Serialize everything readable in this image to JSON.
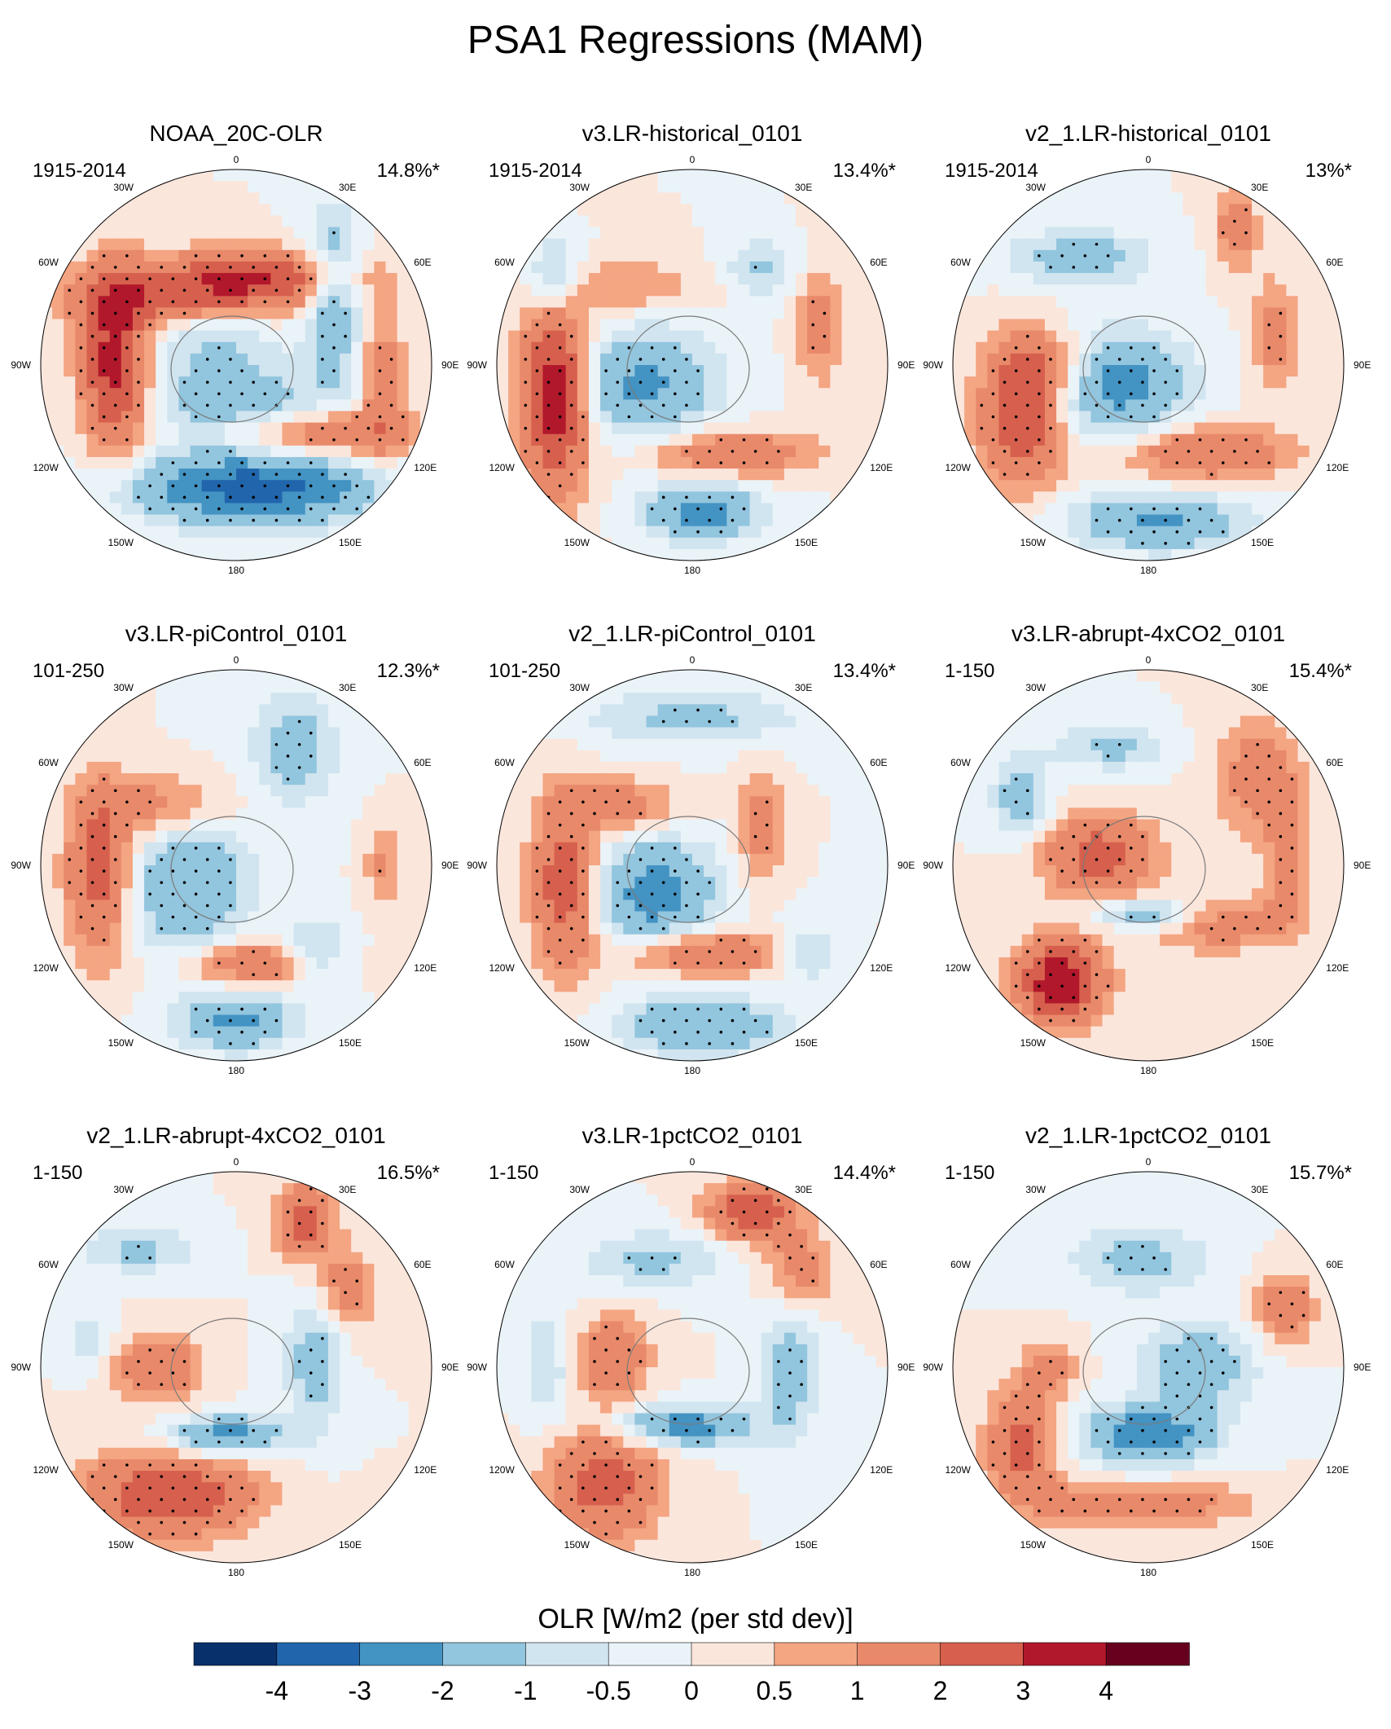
{
  "title": "PSA1 Regressions (MAM)",
  "colorbar": {
    "title": "OLR [W/m2 (per std dev)]",
    "tick_labels": [
      "-4",
      "-3",
      "-2",
      "-1",
      "-0.5",
      "0",
      "0.5",
      "1",
      "2",
      "3",
      "4"
    ],
    "colors": [
      "#08306b",
      "#2166ac",
      "#4393c3",
      "#92c5de",
      "#d1e5f0",
      "#eaf3f8",
      "#fbe6dc",
      "#f4a582",
      "#e8896a",
      "#d6604d",
      "#b2182b",
      "#67001f"
    ]
  },
  "chart_data": {
    "type": "heatmap",
    "projection": "south polar stereographic",
    "variable": "OLR regression on PSA1",
    "season": "MAM",
    "longitude_labels": [
      "0",
      "30E",
      "60E",
      "90E",
      "120E",
      "150E",
      "180",
      "150W",
      "120W",
      "90W",
      "60W",
      "30W"
    ],
    "panels": [
      {
        "title": "NOAA_20C-OLR",
        "years": "1915-2014",
        "variance": "14.8%*",
        "blobs": [
          [
            -0.62,
            0.0,
            0.12,
            0.32,
            3.5
          ],
          [
            -0.3,
            -0.35,
            0.42,
            0.11,
            2.0
          ],
          [
            0.1,
            -0.45,
            0.35,
            0.1,
            2.5
          ],
          [
            0.05,
            0.2,
            0.35,
            0.1,
            -1.5
          ],
          [
            0.5,
            -0.35,
            0.1,
            0.3,
            -2.0
          ],
          [
            0.1,
            0.62,
            0.45,
            0.13,
            -3.5
          ],
          [
            -0.1,
            -0.1,
            0.25,
            0.18,
            -1.2
          ],
          [
            0.75,
            0.1,
            0.08,
            0.3,
            1.5
          ],
          [
            0.45,
            0.35,
            0.3,
            0.1,
            2.0
          ]
        ]
      },
      {
        "title": "v3.LR-historical_0101",
        "years": "1915-2014",
        "variance": "13.4%*",
        "blobs": [
          [
            -0.7,
            0.15,
            0.12,
            0.35,
            3.8
          ],
          [
            -0.25,
            0.1,
            0.25,
            0.2,
            -2.2
          ],
          [
            0.2,
            0.45,
            0.3,
            0.08,
            2.0
          ],
          [
            0.05,
            0.75,
            0.2,
            0.1,
            -2.5
          ],
          [
            0.65,
            -0.2,
            0.08,
            0.2,
            1.5
          ],
          [
            -0.7,
            -0.45,
            0.1,
            0.15,
            -1.8
          ],
          [
            0.35,
            -0.5,
            0.12,
            0.1,
            -1.2
          ],
          [
            -0.3,
            -0.4,
            0.25,
            0.1,
            1.0
          ]
        ]
      },
      {
        "title": "v2_1.LR-historical_0101",
        "years": "1915-2014",
        "variance": "13%*",
        "blobs": [
          [
            -0.65,
            0.25,
            0.15,
            0.25,
            3.0
          ],
          [
            -0.15,
            0.1,
            0.25,
            0.18,
            -2.5
          ],
          [
            0.3,
            0.45,
            0.3,
            0.1,
            2.0
          ],
          [
            0.05,
            0.8,
            0.3,
            0.1,
            -2.2
          ],
          [
            0.65,
            -0.15,
            0.08,
            0.2,
            1.5
          ],
          [
            -0.35,
            -0.55,
            0.25,
            0.1,
            -1.5
          ],
          [
            0.45,
            -0.7,
            0.08,
            0.15,
            1.5
          ],
          [
            -0.5,
            0.0,
            0.15,
            0.12,
            1.5
          ]
        ]
      },
      {
        "title": "v3.LR-piControl_0101",
        "years": "101-250",
        "variance": "12.3%*",
        "blobs": [
          [
            -0.7,
            0.05,
            0.12,
            0.3,
            2.5
          ],
          [
            -0.4,
            -0.3,
            0.25,
            0.12,
            1.5
          ],
          [
            -0.25,
            0.1,
            0.22,
            0.25,
            -2.0
          ],
          [
            0.1,
            0.5,
            0.25,
            0.08,
            2.0
          ],
          [
            0.0,
            0.8,
            0.2,
            0.1,
            -2.2
          ],
          [
            0.4,
            0.45,
            0.12,
            0.12,
            -1.5
          ],
          [
            0.3,
            -0.6,
            0.15,
            0.2,
            -1.5
          ],
          [
            0.75,
            0.0,
            0.06,
            0.15,
            1.2
          ]
        ]
      },
      {
        "title": "v2_1.LR-piControl_0101",
        "years": "101-250",
        "variance": "13.4%*",
        "blobs": [
          [
            -0.65,
            0.1,
            0.12,
            0.3,
            2.8
          ],
          [
            -0.2,
            0.15,
            0.22,
            0.2,
            -2.5
          ],
          [
            0.05,
            0.45,
            0.3,
            0.08,
            2.2
          ],
          [
            0.05,
            0.82,
            0.3,
            0.1,
            -2.0
          ],
          [
            -0.35,
            -0.3,
            0.2,
            0.1,
            1.5
          ],
          [
            0.35,
            -0.2,
            0.08,
            0.2,
            1.5
          ],
          [
            0.0,
            -0.75,
            0.4,
            0.1,
            -1.2
          ],
          [
            0.6,
            0.45,
            0.12,
            0.1,
            -1.2
          ]
        ]
      },
      {
        "title": "v3.LR-abrupt-4xCO2_0101",
        "years": "1-150",
        "variance": "15.4%*",
        "blobs": [
          [
            -0.45,
            0.6,
            0.15,
            0.15,
            4.0
          ],
          [
            -0.25,
            -0.05,
            0.2,
            0.15,
            2.5
          ],
          [
            0.0,
            0.25,
            0.2,
            0.06,
            -2.0
          ],
          [
            0.35,
            0.3,
            0.3,
            0.1,
            1.5
          ],
          [
            0.55,
            -0.45,
            0.15,
            0.2,
            1.5
          ],
          [
            0.7,
            -0.05,
            0.08,
            0.25,
            1.2
          ],
          [
            -0.65,
            -0.35,
            0.1,
            0.15,
            -1.5
          ],
          [
            -0.2,
            -0.6,
            0.2,
            0.08,
            -1.2
          ]
        ]
      },
      {
        "title": "v2_1.LR-abrupt-4xCO2_0101",
        "years": "1-150",
        "variance": "16.5%*",
        "blobs": [
          [
            -0.35,
            0.65,
            0.3,
            0.15,
            3.0
          ],
          [
            -0.4,
            0.0,
            0.15,
            0.12,
            2.0
          ],
          [
            -0.05,
            0.35,
            0.2,
            0.07,
            -2.5
          ],
          [
            0.4,
            -0.05,
            0.1,
            0.25,
            -1.5
          ],
          [
            0.35,
            -0.75,
            0.1,
            0.12,
            2.8
          ],
          [
            0.55,
            -0.4,
            0.12,
            0.15,
            1.5
          ],
          [
            -0.5,
            -0.6,
            0.2,
            0.08,
            -1.2
          ],
          [
            -0.75,
            -0.15,
            0.08,
            0.1,
            -1.0
          ]
        ]
      },
      {
        "title": "v3.LR-1pctCO2_0101",
        "years": "1-150",
        "variance": "14.4%*",
        "blobs": [
          [
            -0.45,
            0.6,
            0.2,
            0.2,
            2.5
          ],
          [
            -0.4,
            -0.05,
            0.12,
            0.15,
            2.0
          ],
          [
            -0.05,
            0.3,
            0.25,
            0.07,
            -2.5
          ],
          [
            0.5,
            0.0,
            0.1,
            0.25,
            -1.5
          ],
          [
            0.3,
            -0.8,
            0.15,
            0.1,
            3.0
          ],
          [
            0.55,
            -0.5,
            0.12,
            0.15,
            1.5
          ],
          [
            -0.2,
            -0.55,
            0.25,
            0.1,
            -1.2
          ],
          [
            -0.75,
            0.0,
            0.08,
            0.2,
            -1.0
          ]
        ]
      },
      {
        "title": "v2_1.LR-1pctCO2_0101",
        "years": "1-150",
        "variance": "15.7%*",
        "blobs": [
          [
            -0.65,
            0.4,
            0.12,
            0.2,
            2.5
          ],
          [
            0.0,
            0.35,
            0.22,
            0.1,
            -3.0
          ],
          [
            0.25,
            0.0,
            0.2,
            0.15,
            -1.8
          ],
          [
            0.7,
            -0.3,
            0.1,
            0.12,
            2.0
          ],
          [
            -0.3,
            0.7,
            0.2,
            0.08,
            1.5
          ],
          [
            0.2,
            0.7,
            0.25,
            0.08,
            1.2
          ],
          [
            -0.05,
            -0.55,
            0.25,
            0.12,
            -1.3
          ],
          [
            -0.5,
            0.0,
            0.1,
            0.1,
            1.2
          ]
        ]
      }
    ]
  }
}
